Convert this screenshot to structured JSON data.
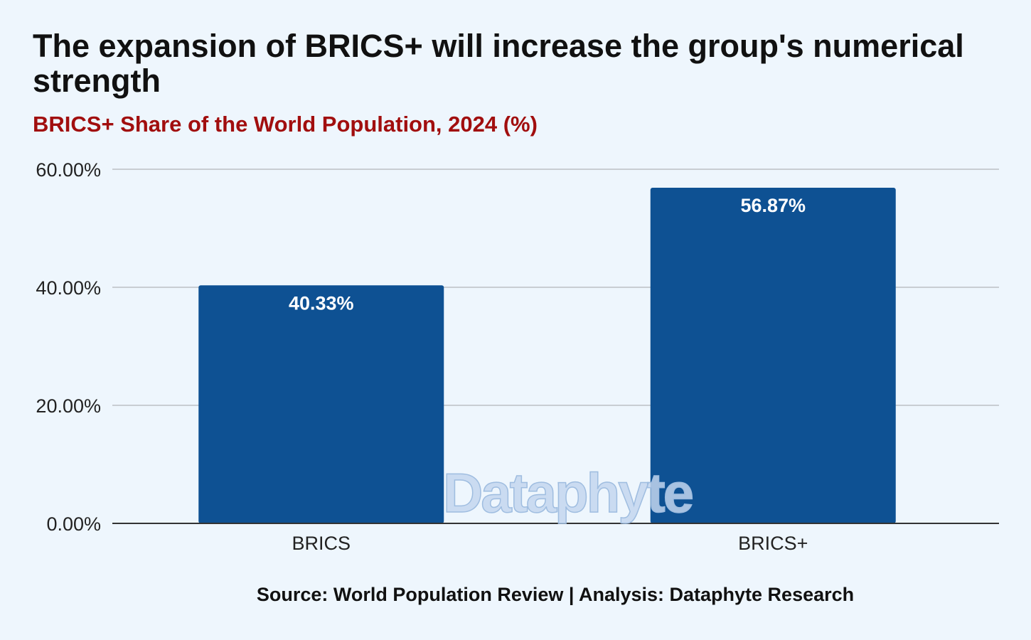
{
  "colors": {
    "background": "#eef6fd",
    "bar": "#0e5193",
    "subtitle": "#a10e0e",
    "gridline": "#c8cdd2",
    "baseline": "#333333",
    "data_label": "#ffffff"
  },
  "watermark": "Dataphyte",
  "source": "Source: World Population Review | Analysis: Dataphyte Research",
  "chart_data": {
    "type": "bar",
    "title": "The expansion of BRICS+ will increase the group's numerical strength",
    "subtitle": "BRICS+ Share of the World Population, 2024 (%)",
    "categories": [
      "BRICS",
      "BRICS+"
    ],
    "values": [
      40.33,
      56.87
    ],
    "data_labels": [
      "40.33%",
      "56.87%"
    ],
    "y_ticks": [
      0,
      20,
      40,
      60
    ],
    "y_tick_labels": [
      "0.00%",
      "20.00%",
      "40.00%",
      "60.00%"
    ],
    "ylim": [
      0,
      60
    ],
    "xlabel": "",
    "ylabel": "",
    "grid": true,
    "legend": "none"
  }
}
